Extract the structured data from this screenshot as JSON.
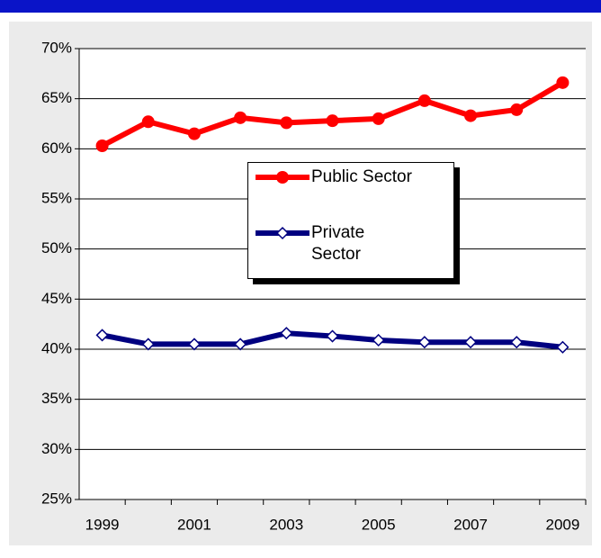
{
  "chart_data": {
    "type": "line",
    "categories": [
      "1999",
      null,
      "2001",
      null,
      "2003",
      null,
      "2005",
      null,
      "2007",
      null,
      "2009"
    ],
    "series": [
      {
        "name": "Public Sector",
        "color": "#ff0000",
        "marker": "circle",
        "values": [
          60.3,
          62.7,
          61.5,
          63.1,
          62.6,
          62.8,
          63.0,
          64.8,
          63.3,
          63.9,
          66.6
        ]
      },
      {
        "name": "Private Sector",
        "color": "#000080",
        "marker": "diamond",
        "values": [
          41.4,
          40.5,
          40.5,
          40.5,
          41.6,
          41.3,
          40.9,
          40.7,
          40.7,
          40.7,
          40.2
        ]
      }
    ],
    "ylim": [
      25,
      70
    ],
    "yticks": [
      {
        "value": 25,
        "label": "25%"
      },
      {
        "value": 30,
        "label": "30%"
      },
      {
        "value": 35,
        "label": "35%"
      },
      {
        "value": 40,
        "label": "40%"
      },
      {
        "value": 45,
        "label": "45%"
      },
      {
        "value": 50,
        "label": "50%"
      },
      {
        "value": 55,
        "label": "55%"
      },
      {
        "value": 60,
        "label": "60%"
      },
      {
        "value": 65,
        "label": "65%"
      },
      {
        "value": 70,
        "label": "70%"
      }
    ],
    "grid": true
  }
}
